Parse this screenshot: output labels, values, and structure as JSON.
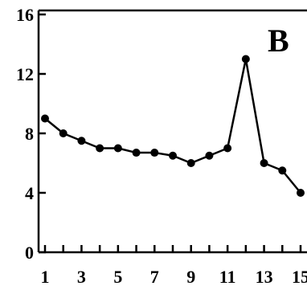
{
  "chart_data": {
    "type": "line",
    "title": "",
    "xlabel": "",
    "ylabel": "",
    "panel_label": "B",
    "x": [
      1,
      2,
      3,
      4,
      5,
      6,
      7,
      8,
      9,
      10,
      11,
      12,
      13,
      14,
      15
    ],
    "series": [
      {
        "values": [
          9,
          8,
          7.5,
          7,
          7,
          6.7,
          6.7,
          6.5,
          6,
          6.5,
          7,
          13,
          6,
          5.5,
          4
        ]
      }
    ],
    "x_tick_labels": [
      "1",
      "3",
      "5",
      "7",
      "9",
      "11",
      "13",
      "15"
    ],
    "y_tick_labels": [
      "0",
      "4",
      "8",
      "12",
      "16"
    ],
    "xlim": [
      1,
      15
    ],
    "ylim": [
      0,
      16
    ],
    "grid": false,
    "line_color": "#000000",
    "marker_color": "#000000"
  }
}
